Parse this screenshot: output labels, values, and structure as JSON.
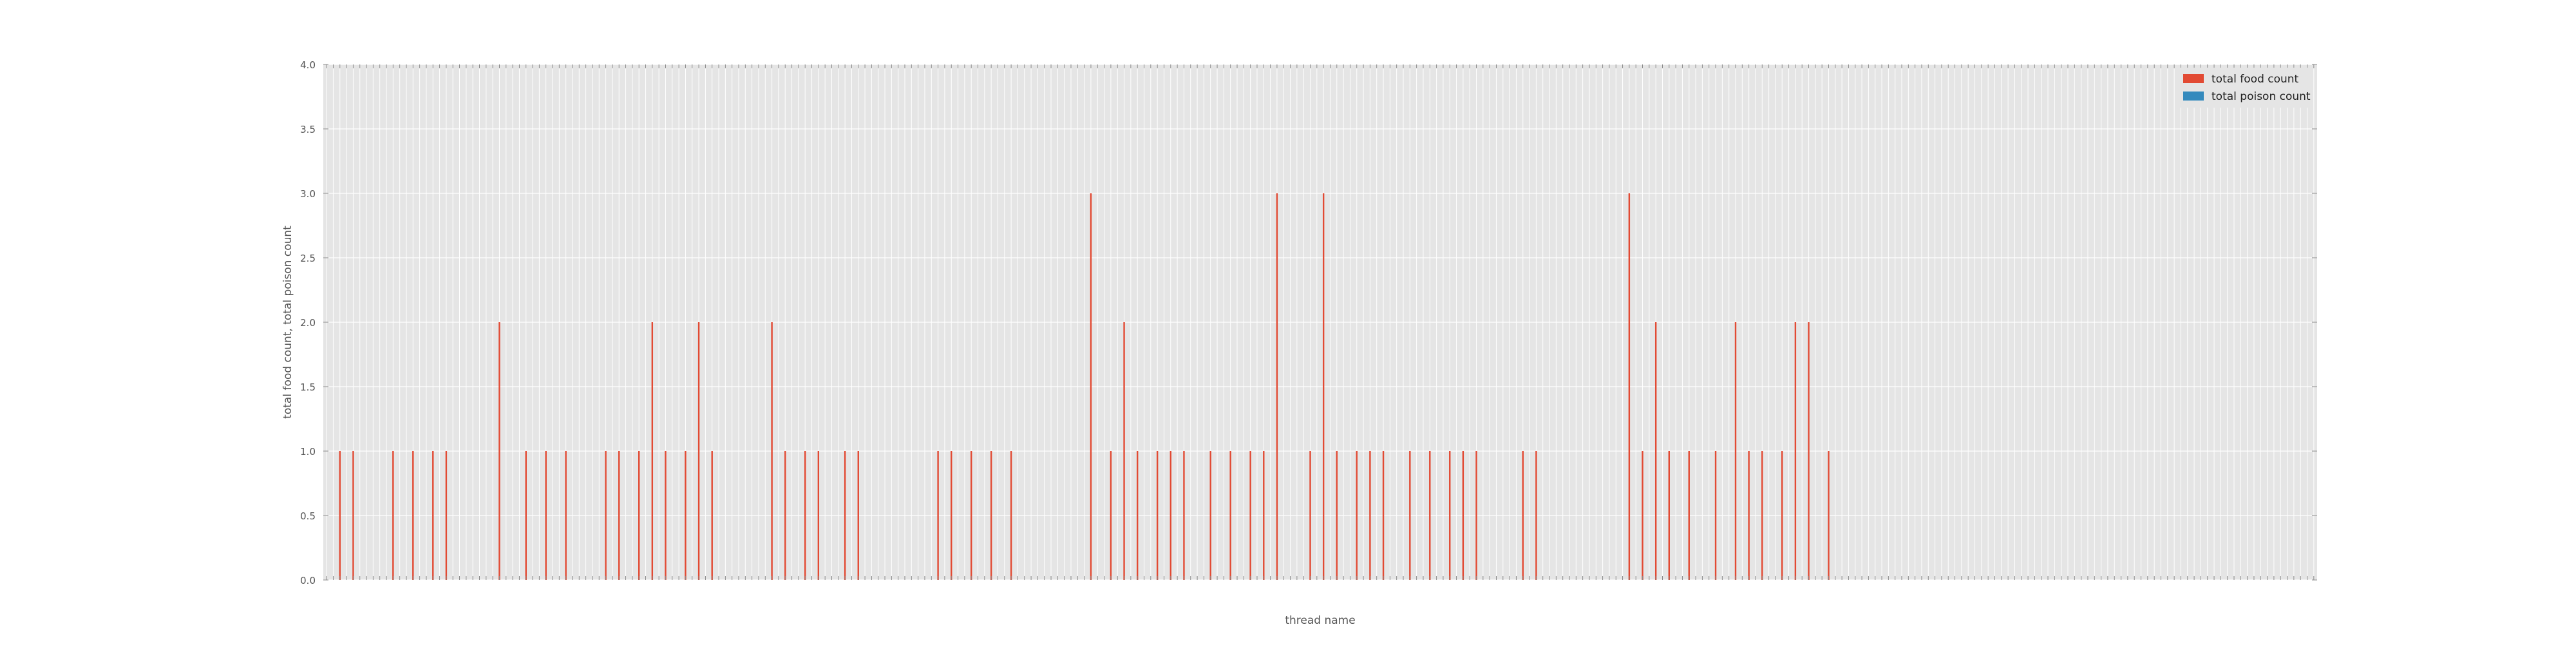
{
  "chart_data": {
    "type": "bar",
    "title": "",
    "xlabel": "thread name",
    "ylabel": "total food count, total poison count",
    "ylim": [
      0,
      4.0
    ],
    "yticks": [
      "0.0",
      "0.5",
      "1.0",
      "1.5",
      "2.0",
      "2.5",
      "3.0",
      "3.5",
      "4.0"
    ],
    "grid": true,
    "legend_position": "top-right",
    "x_tick_labels_note": "thread names are printed as dense rotated tick labels and are not legible",
    "num_categories": 300,
    "series": [
      {
        "name": "total food count",
        "color": "#e24a33",
        "values": [
          0,
          0,
          1,
          0,
          1,
          0,
          0,
          0,
          0,
          0,
          1,
          0,
          0,
          1,
          0,
          0,
          1,
          0,
          1,
          0,
          0,
          0,
          0,
          0,
          0,
          0,
          2,
          0,
          0,
          0,
          1,
          0,
          0,
          1,
          0,
          0,
          1,
          0,
          0,
          0,
          0,
          0,
          1,
          0,
          1,
          0,
          0,
          1,
          0,
          2,
          0,
          1,
          0,
          0,
          1,
          0,
          2,
          0,
          1,
          0,
          0,
          0,
          0,
          0,
          0,
          0,
          0,
          2,
          0,
          1,
          0,
          0,
          1,
          0,
          1,
          0,
          0,
          0,
          1,
          0,
          1,
          0,
          0,
          0,
          0,
          0,
          0,
          0,
          0,
          0,
          0,
          0,
          1,
          0,
          1,
          0,
          0,
          1,
          0,
          0,
          1,
          0,
          0,
          1,
          0,
          0,
          0,
          0,
          0,
          0,
          0,
          0,
          0,
          0,
          0,
          3,
          0,
          0,
          1,
          0,
          2,
          0,
          1,
          0,
          0,
          1,
          0,
          1,
          0,
          1,
          0,
          0,
          0,
          1,
          0,
          0,
          1,
          0,
          0,
          1,
          0,
          1,
          0,
          3,
          0,
          0,
          0,
          0,
          1,
          0,
          3,
          0,
          1,
          0,
          0,
          1,
          0,
          1,
          0,
          1,
          0,
          0,
          0,
          1,
          0,
          0,
          1,
          0,
          0,
          1,
          0,
          1,
          0,
          1,
          0,
          0,
          0,
          0,
          0,
          0,
          1,
          0,
          1,
          0,
          0,
          0,
          0,
          0,
          0,
          0,
          0,
          0,
          0,
          0,
          0,
          0,
          3,
          0,
          1,
          0,
          2,
          0,
          1,
          0,
          0,
          1,
          0,
          0,
          0,
          1,
          0,
          0,
          2,
          0,
          1,
          0,
          1,
          0,
          0,
          1,
          0,
          2,
          0,
          2,
          0,
          0,
          1,
          0,
          0,
          0,
          0,
          0,
          0,
          0,
          0,
          0,
          0,
          0,
          0,
          0,
          0,
          0,
          0,
          0,
          0,
          0,
          0,
          0,
          0,
          0,
          0,
          0,
          0,
          0,
          0,
          0,
          0,
          0,
          0,
          0,
          0,
          0,
          0,
          0,
          0,
          0,
          0,
          0,
          0,
          0,
          0,
          0,
          0,
          0,
          0,
          0,
          0,
          0,
          0,
          0,
          0,
          0,
          0,
          0,
          0,
          0,
          0,
          0
        ]
      },
      {
        "name": "total poison count",
        "color": "#348abd",
        "values": []
      }
    ]
  }
}
